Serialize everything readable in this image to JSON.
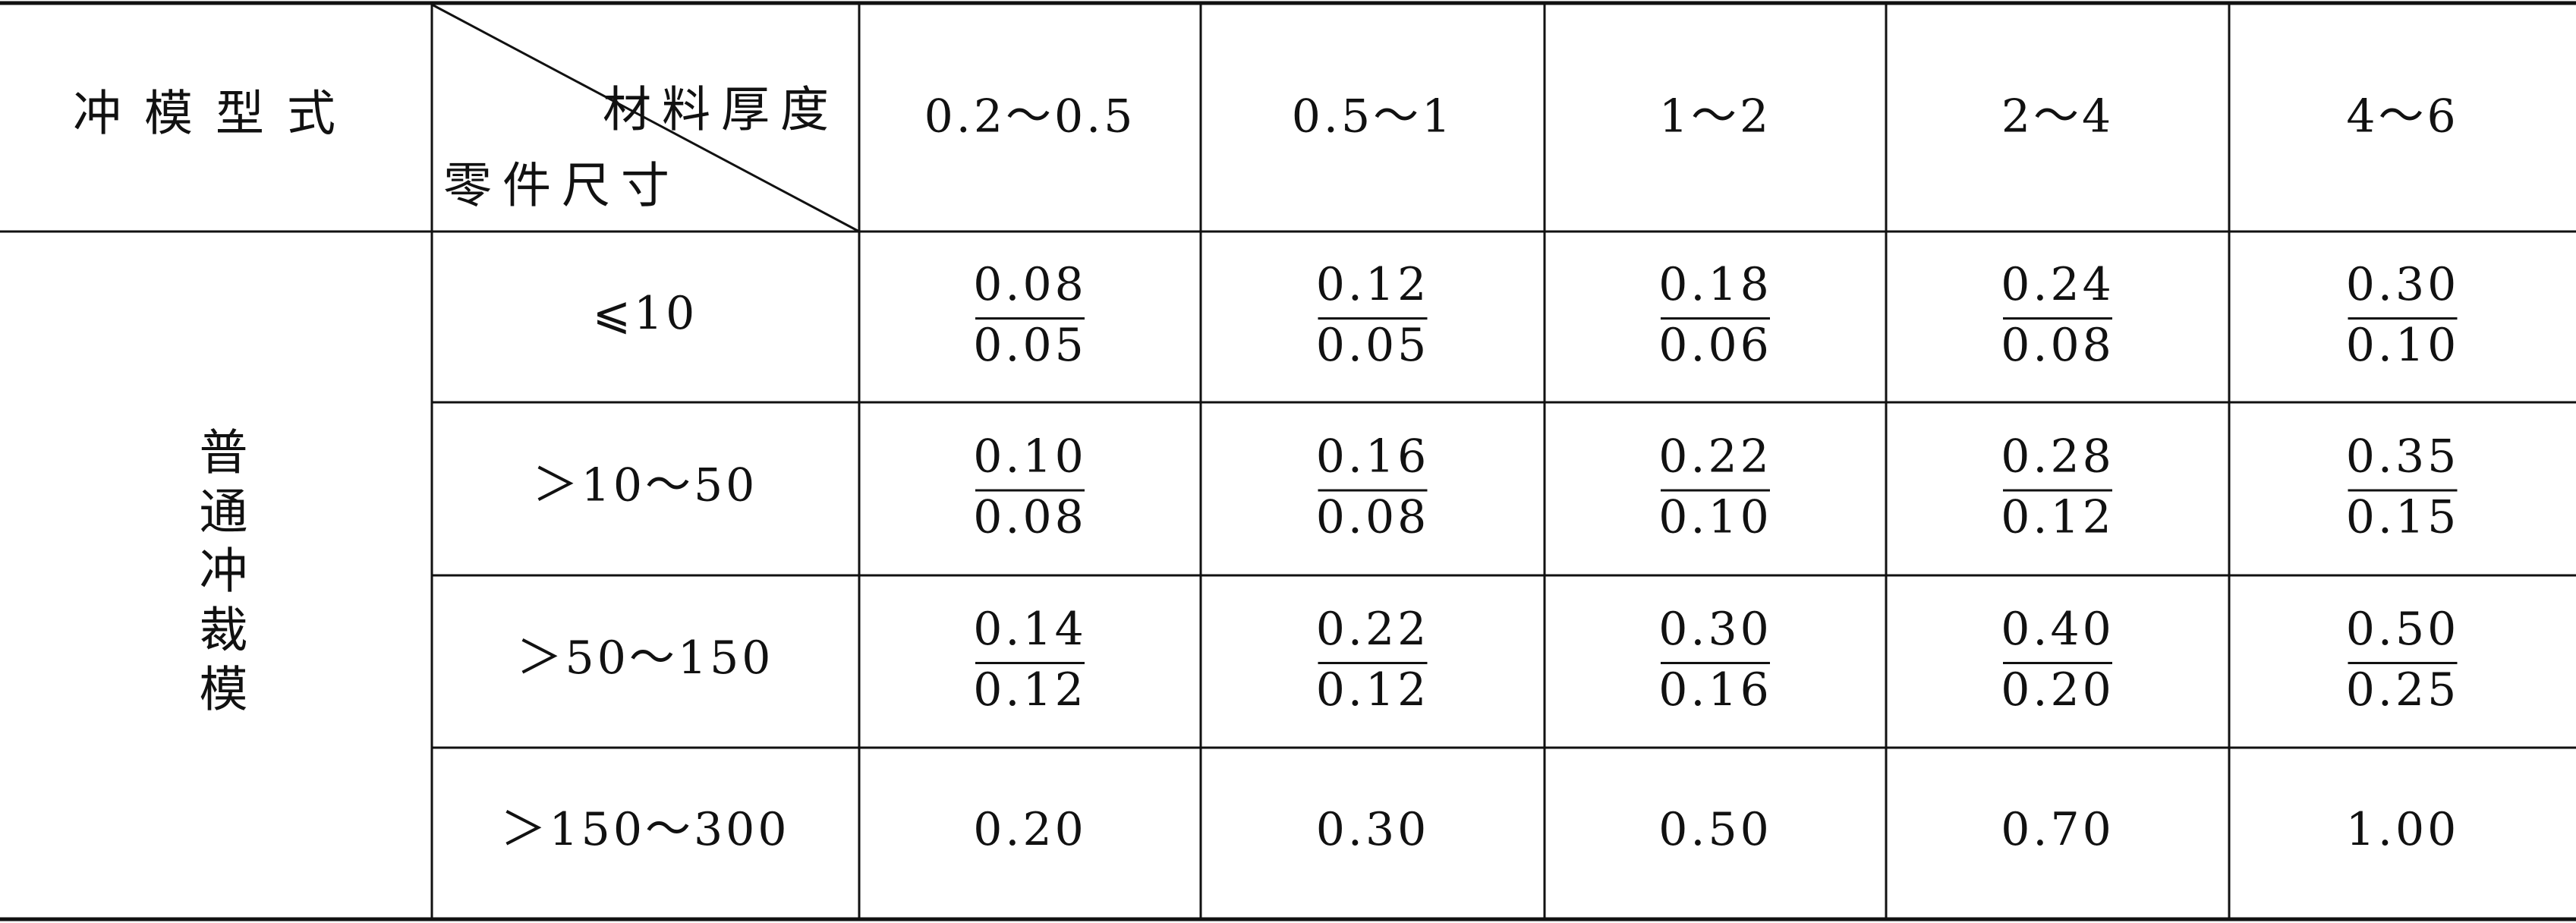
{
  "header": {
    "die_type": "冲模型式",
    "thickness_label": "材料厚度",
    "size_label": "零件尺寸",
    "thicknesses": [
      "0.2～0.5",
      "0.5～1",
      "1～2",
      "2～4",
      "4～6"
    ]
  },
  "group": "普通冲裁模",
  "rows": [
    {
      "size": "⩽10",
      "cells": [
        {
          "top": "0.08",
          "bottom": "0.05"
        },
        {
          "top": "0.12",
          "bottom": "0.05"
        },
        {
          "top": "0.18",
          "bottom": "0.06"
        },
        {
          "top": "0.24",
          "bottom": "0.08"
        },
        {
          "top": "0.30",
          "bottom": "0.10"
        }
      ]
    },
    {
      "size": "＞10～50",
      "cells": [
        {
          "top": "0.10",
          "bottom": "0.08"
        },
        {
          "top": "0.16",
          "bottom": "0.08"
        },
        {
          "top": "0.22",
          "bottom": "0.10"
        },
        {
          "top": "0.28",
          "bottom": "0.12"
        },
        {
          "top": "0.35",
          "bottom": "0.15"
        }
      ]
    },
    {
      "size": "＞50～150",
      "cells": [
        {
          "top": "0.14",
          "bottom": "0.12"
        },
        {
          "top": "0.22",
          "bottom": "0.12"
        },
        {
          "top": "0.30",
          "bottom": "0.16"
        },
        {
          "top": "0.40",
          "bottom": "0.20"
        },
        {
          "top": "0.50",
          "bottom": "0.25"
        }
      ]
    },
    {
      "size": "＞150～300",
      "cells": [
        {
          "value": "0.20"
        },
        {
          "value": "0.30"
        },
        {
          "value": "0.50"
        },
        {
          "value": "0.70"
        },
        {
          "value": "1.00"
        }
      ]
    }
  ]
}
